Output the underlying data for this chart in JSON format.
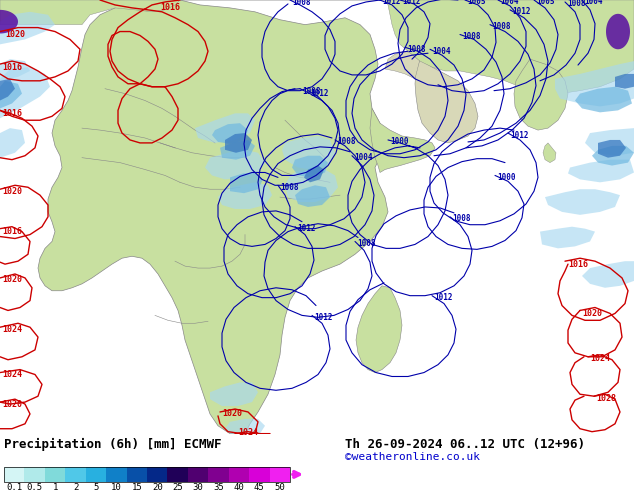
{
  "title_left": "Precipitation (6h) [mm] ECMWF",
  "title_right": "Th 26-09-2024 06..12 UTC (12+96)",
  "subtitle_right": "©weatheronline.co.uk",
  "colorbar_values": [
    "0.1",
    "0.5",
    "1",
    "2",
    "5",
    "10",
    "15",
    "20",
    "25",
    "30",
    "35",
    "40",
    "45",
    "50"
  ],
  "colorbar_colors": [
    "#d4f5f5",
    "#b0eaea",
    "#80dada",
    "#50c8e8",
    "#28b0e0",
    "#1080c8",
    "#0850a8",
    "#042888",
    "#200058",
    "#500070",
    "#800090",
    "#b000b0",
    "#d800d8",
    "#f020f0"
  ],
  "ocean_color": "#d8eef8",
  "land_color": "#c8e0a0",
  "precip_light": "#b0ddf0",
  "precip_mid": "#78bce0",
  "precip_dark": "#3080c8",
  "fig_bg": "#ffffff",
  "border_color": "#888888",
  "red": "#cc0000",
  "blue": "#0000aa",
  "title_fs": 9,
  "credit_fs": 8,
  "credit_color": "#0000cc"
}
